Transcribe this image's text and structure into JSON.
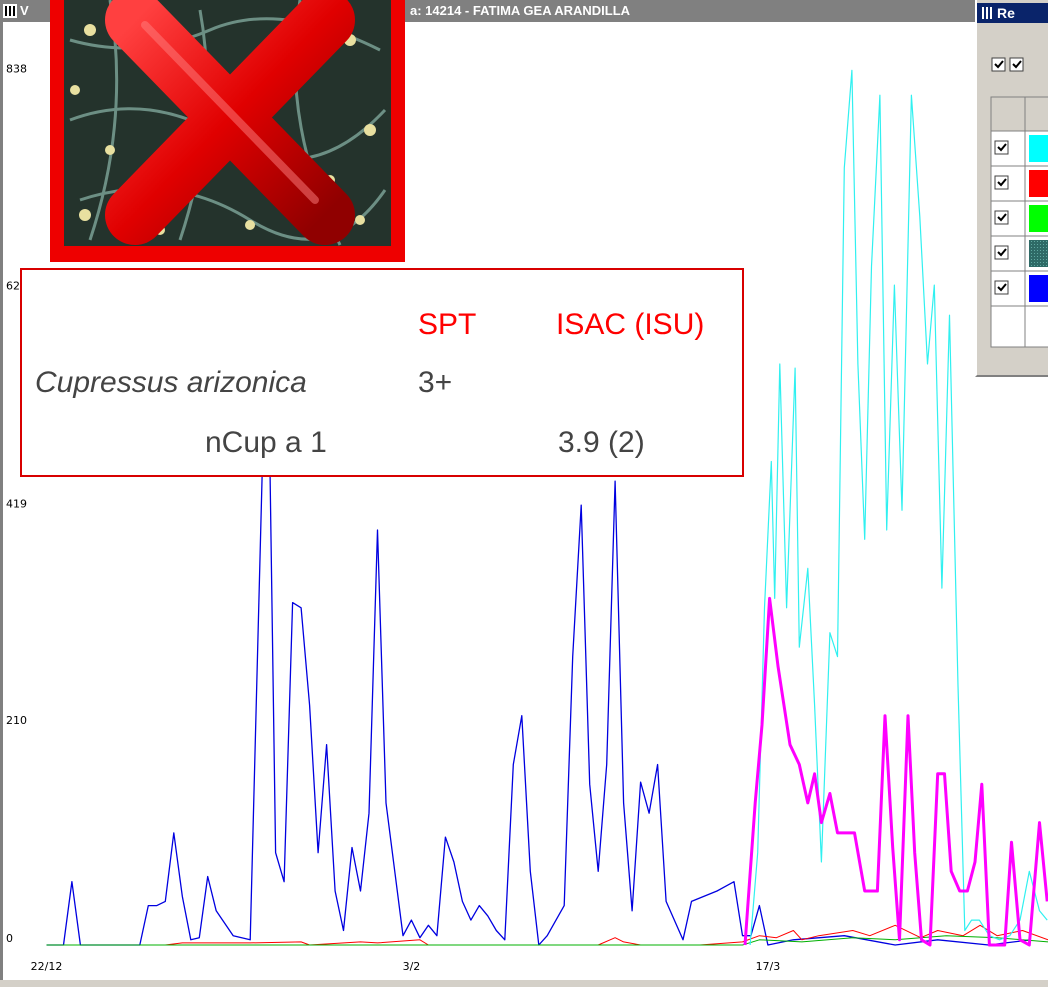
{
  "window": {
    "title_parts": [
      "V",
      "a: 14214 - FATIMA GEA ARANDILLA"
    ]
  },
  "panel": {
    "title": "Re"
  },
  "table": {
    "header": [
      "SPT",
      "ISAC (ISU)"
    ],
    "rows": [
      {
        "label": "Cupressus arizonica",
        "spt": "3+"
      },
      {
        "label": "nCup a 1",
        "isac": "3.9 (2)"
      }
    ]
  },
  "chart_data": {
    "type": "line",
    "xlim": [
      -1,
      118
    ],
    "xticks": [
      {
        "value": 0,
        "label": "22/12"
      },
      {
        "value": 43,
        "label": "3/2"
      },
      {
        "value": 85,
        "label": "17/3"
      }
    ],
    "ylim": [
      0,
      878
    ],
    "yticks": [
      0,
      210,
      419,
      629,
      838
    ],
    "grid": false,
    "series": [
      {
        "color": "#0000e0",
        "line_width": 1.3,
        "x": [
          0,
          2,
          3,
          4,
          11,
          12,
          13,
          14,
          15,
          16,
          17,
          18,
          19,
          20,
          22,
          24,
          26,
          27,
          28,
          29,
          30,
          31,
          32,
          33,
          34,
          35,
          36,
          37,
          38,
          39,
          40,
          42,
          43,
          44,
          45,
          46,
          47,
          48,
          49,
          50,
          51,
          52,
          53,
          54,
          55,
          56,
          57,
          58,
          59,
          61,
          62,
          63,
          64,
          65,
          66,
          67,
          68,
          69,
          70,
          71,
          72,
          73,
          75,
          76,
          79,
          81,
          82,
          83,
          84,
          85,
          88,
          94,
          100,
          105,
          111,
          116
        ],
        "values": [
          0,
          0,
          61,
          0,
          0,
          38,
          38,
          42,
          108,
          47,
          5,
          7,
          66,
          33,
          9,
          5,
          643,
          89,
          61,
          330,
          325,
          231,
          89,
          193,
          52,
          14,
          94,
          52,
          127,
          400,
          137,
          9,
          24,
          7,
          19,
          9,
          104,
          80,
          42,
          24,
          38,
          28,
          14,
          5,
          174,
          221,
          71,
          0,
          9,
          38,
          278,
          424,
          155,
          71,
          174,
          447,
          137,
          33,
          157,
          127,
          174,
          42,
          5,
          42,
          52,
          61,
          9,
          9,
          38,
          0,
          5,
          9,
          0,
          5,
          0,
          5
        ]
      },
      {
        "color": "#ff0000",
        "line_width": 1,
        "x": [
          0,
          14,
          16,
          24,
          30,
          31,
          37,
          39,
          44,
          45,
          56,
          65,
          67,
          68,
          70,
          77,
          82,
          84,
          86,
          88,
          89,
          91,
          95,
          97,
          100,
          103,
          105,
          108,
          110,
          112,
          115,
          118
        ],
        "values": [
          0,
          0,
          2,
          2,
          3,
          0,
          3,
          2,
          5,
          0,
          0,
          0,
          7,
          3,
          0,
          0,
          3,
          9,
          7,
          14,
          5,
          9,
          14,
          9,
          19,
          7,
          14,
          9,
          19,
          9,
          14,
          5
        ]
      },
      {
        "color": "#00b000",
        "line_width": 1,
        "x": [
          0,
          82,
          84,
          89,
          95,
          100,
          106,
          112,
          118
        ],
        "values": [
          0,
          0,
          5,
          3,
          7,
          5,
          9,
          7,
          3
        ]
      },
      {
        "color": "#30f0f0",
        "line_width": 1.2,
        "x": [
          82.9,
          83.8,
          84.6,
          85.4,
          85.8,
          86.4,
          87.2,
          88.2,
          88.7,
          89.7,
          90.5,
          91.3,
          92.3,
          93.2,
          94,
          94.9,
          95.6,
          96.4,
          97.2,
          98.2,
          99,
          99.9,
          100.8,
          101.9,
          102.9,
          103.8,
          104.6,
          105.5,
          106.4,
          107.4,
          108.2,
          109,
          109.9,
          111.1,
          112.3,
          113.5,
          114.7,
          115.8,
          117,
          117.9
        ],
        "values": [
          0,
          89,
          325,
          466,
          334,
          560,
          325,
          556,
          287,
          363,
          231,
          80,
          301,
          278,
          749,
          843,
          560,
          391,
          654,
          819,
          400,
          636,
          419,
          819,
          702,
          560,
          636,
          344,
          607,
          250,
          14,
          24,
          24,
          9,
          5,
          9,
          24,
          71,
          33,
          24
        ]
      },
      {
        "color": "#ff00ff",
        "line_width": 3,
        "x": [
          82.3,
          83.5,
          84.3,
          85.2,
          86.2,
          87.6,
          88.7,
          89.7,
          90.5,
          91.3,
          92.3,
          93.2,
          94,
          95.2,
          96.4,
          97.9,
          98.8,
          99.7,
          100.5,
          101.5,
          102.3,
          103.1,
          104.1,
          105,
          105.8,
          106.6,
          107.6,
          108.5,
          109.4,
          110.2,
          111.1,
          112.9,
          113.7,
          114.7,
          115.8,
          117,
          117.9
        ],
        "values": [
          0,
          137,
          212,
          334,
          268,
          193,
          174,
          137,
          165,
          118,
          146,
          108,
          108,
          108,
          52,
          52,
          221,
          94,
          5,
          221,
          89,
          5,
          0,
          165,
          165,
          71,
          52,
          52,
          80,
          155,
          0,
          0,
          99,
          5,
          0,
          118,
          42
        ]
      }
    ]
  }
}
